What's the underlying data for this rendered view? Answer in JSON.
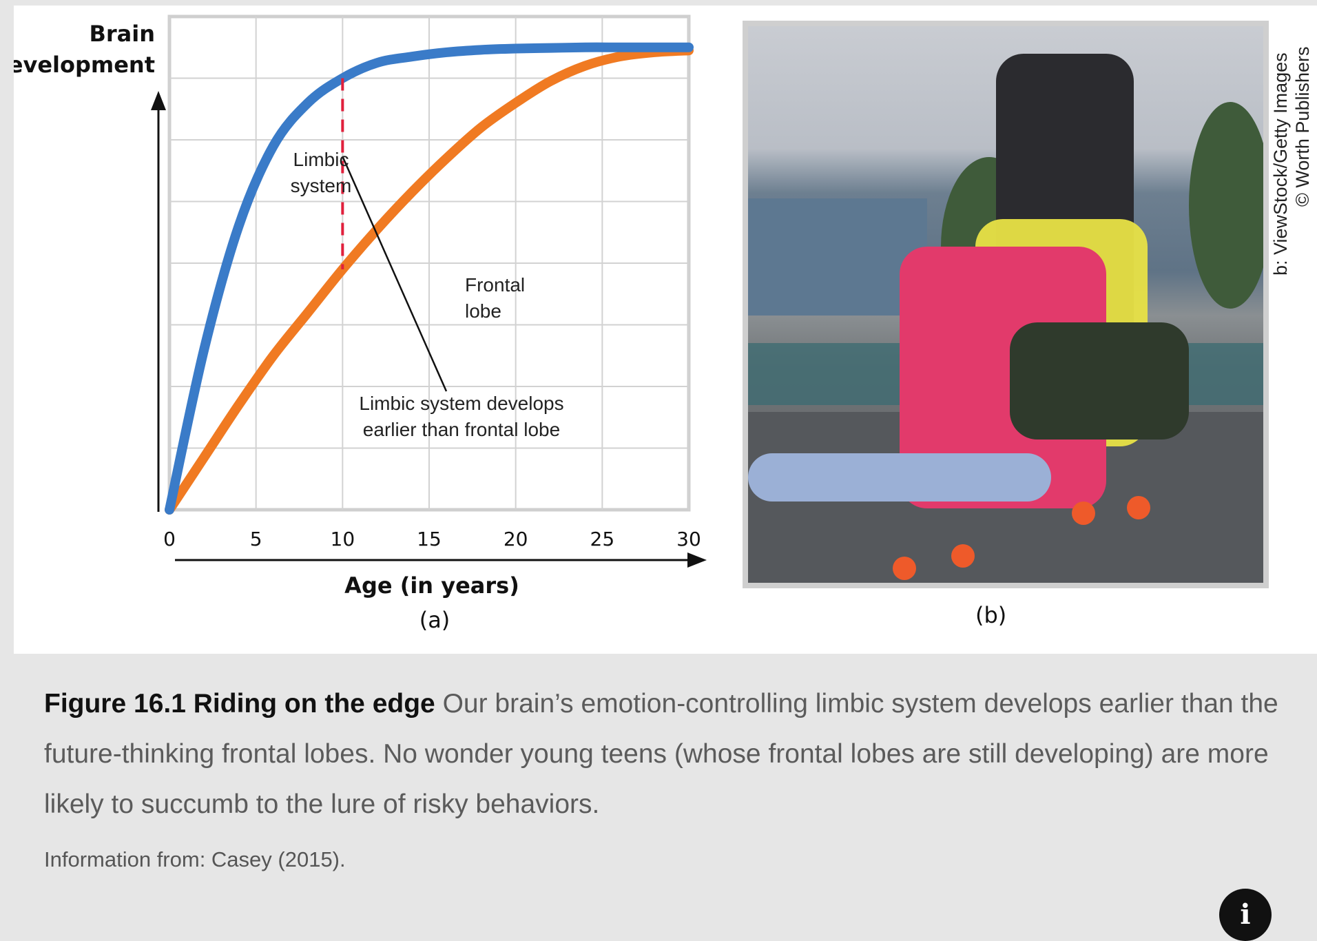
{
  "chart_data": {
    "type": "line",
    "ylabel": "Brain development",
    "xlabel": "Age (in years)",
    "panel_label": "(a)",
    "xlim": [
      0,
      30
    ],
    "ylim": [
      0,
      8
    ],
    "x_ticks": [
      0,
      5,
      10,
      15,
      20,
      25,
      30
    ],
    "grid": true,
    "series": [
      {
        "name": "Limbic system",
        "color": "#3a7bc8",
        "x": [
          0,
          2,
          4,
          6,
          8,
          10,
          12,
          14,
          16,
          18,
          20,
          22,
          24,
          26,
          28,
          30
        ],
        "y": [
          0,
          2.6,
          4.6,
          5.9,
          6.6,
          7.0,
          7.25,
          7.35,
          7.42,
          7.46,
          7.48,
          7.49,
          7.5,
          7.5,
          7.5,
          7.5
        ]
      },
      {
        "name": "Frontal lobe",
        "color": "#f07a22",
        "x": [
          0,
          2,
          4,
          6,
          8,
          10,
          12,
          14,
          16,
          18,
          20,
          22,
          24,
          26,
          28,
          30
        ],
        "y": [
          0,
          0.85,
          1.7,
          2.5,
          3.2,
          3.9,
          4.55,
          5.15,
          5.7,
          6.2,
          6.6,
          6.95,
          7.2,
          7.35,
          7.42,
          7.45
        ]
      }
    ],
    "annotations": [
      {
        "text_lines": [
          "Limbic",
          "system"
        ],
        "series": "Limbic system"
      },
      {
        "text_lines": [
          "Frontal",
          "lobe"
        ],
        "series": "Frontal lobe"
      },
      {
        "text_lines": [
          "Limbic system develops",
          "earlier than frontal lobe"
        ],
        "x": 10,
        "y_from": 3.9,
        "y_to": 7.0
      }
    ],
    "marker_color": "#e0203c"
  },
  "photo": {
    "panel_label": "(b)",
    "credit_lines": [
      "b: ViewStock/Getty Images",
      "© Worth Publishers"
    ]
  },
  "caption": {
    "title": "Figure 16.1 Riding on the edge",
    "text": "Our brain’s emotion-controlling limbic system develops earlier than the future-thinking frontal lobes. No wonder young teens (whose frontal lobes are still developing) are more likely to succumb to the lure of risky behaviors.",
    "source": "Information from: Casey (2015)."
  },
  "info_button": {
    "label": "i",
    "icon": "info-icon"
  }
}
